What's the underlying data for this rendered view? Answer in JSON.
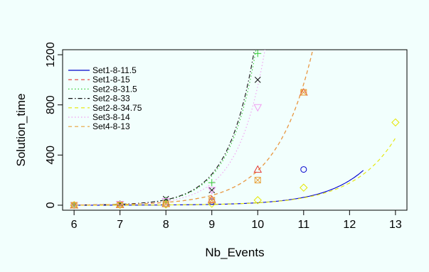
{
  "chart_data": {
    "type": "scatter",
    "title": "",
    "xlabel": "Nb_Events",
    "ylabel": "Solution_time",
    "xlim": [
      5.75,
      13.25
    ],
    "ylim": [
      -40,
      1240
    ],
    "x_ticks": [
      6,
      7,
      8,
      9,
      10,
      11,
      12,
      13
    ],
    "y_ticks": [
      0,
      400,
      800,
      1200
    ],
    "x_tick_labels": [
      "6",
      "7",
      "8",
      "9",
      "10",
      "11",
      "12",
      "13"
    ],
    "y_tick_labels": [
      "0",
      "400",
      "800",
      "1200"
    ],
    "grid": false,
    "legend_position": "top-left",
    "series": [
      {
        "name": "Set1-8-11.5",
        "color": "#0000CC",
        "marker": "circle",
        "dash": "solid",
        "points": [
          {
            "x": 6,
            "y": 0
          },
          {
            "x": 7,
            "y": 3
          },
          {
            "x": 8,
            "y": 8
          },
          {
            "x": 9,
            "y": 28
          },
          {
            "x": 11,
            "y": 285
          }
        ],
        "fit": {
          "a": 0.0002,
          "b": 1.1499,
          "x0": 6,
          "x1": 12.3
        }
      },
      {
        "name": "Set1-8-15",
        "color": "#E53935",
        "marker": "triangle",
        "dash": "dashed",
        "points": [
          {
            "x": 6,
            "y": 0
          },
          {
            "x": 7,
            "y": 4
          },
          {
            "x": 8,
            "y": 12
          },
          {
            "x": 9,
            "y": 45
          },
          {
            "x": 10,
            "y": 285
          },
          {
            "x": 11,
            "y": 900
          }
        ],
        "fit": {
          "a": 0.001,
          "b": 1.2528,
          "x0": 6,
          "x1": 11.25
        }
      },
      {
        "name": "Set2-8-31.5",
        "color": "#33CC33",
        "marker": "plus",
        "dash": "dotted",
        "points": [
          {
            "x": 6,
            "y": 0
          },
          {
            "x": 7,
            "y": 10
          },
          {
            "x": 8,
            "y": 40
          },
          {
            "x": 9,
            "y": 180
          },
          {
            "x": 10,
            "y": 1210
          }
        ],
        "fit": {
          "a": 4e-05,
          "b": 1.7316,
          "x0": 6,
          "x1": 10.25
        }
      },
      {
        "name": "Set2-8-33",
        "color": "#111111",
        "marker": "cross",
        "dash": "dashdot",
        "points": [
          {
            "x": 6,
            "y": 0
          },
          {
            "x": 7,
            "y": 10
          },
          {
            "x": 8,
            "y": 50
          },
          {
            "x": 9,
            "y": 120
          },
          {
            "x": 10,
            "y": 1000
          }
        ],
        "fit": {
          "a": 4e-05,
          "b": 1.7376,
          "x0": 6,
          "x1": 10.15
        }
      },
      {
        "name": "Set2-8-34.75",
        "color": "#E6E600",
        "marker": "diamond",
        "dash": "dashed",
        "points": [
          {
            "x": 6,
            "y": 0
          },
          {
            "x": 7,
            "y": 2
          },
          {
            "x": 8,
            "y": 5
          },
          {
            "x": 9,
            "y": 12
          },
          {
            "x": 10,
            "y": 40
          },
          {
            "x": 11,
            "y": 140
          },
          {
            "x": 13,
            "y": 660
          }
        ],
        "fit": {
          "a": 0.0003,
          "b": 1.1074,
          "x0": 6,
          "x1": 13
        }
      },
      {
        "name": "Set3-8-14",
        "color": "#F09CF0",
        "marker": "inverted-triangle",
        "dash": "dotted",
        "points": [
          {
            "x": 6,
            "y": 0
          },
          {
            "x": 7,
            "y": 8
          },
          {
            "x": 8,
            "y": 30
          },
          {
            "x": 9,
            "y": 120
          },
          {
            "x": 10,
            "y": 780
          }
        ],
        "fit": {
          "a": 4e-05,
          "b": 1.6982,
          "x0": 6,
          "x1": 10.3
        }
      },
      {
        "name": "Set4-8-13",
        "color": "#E8A23C",
        "marker": "square-x",
        "dash": "dashed",
        "points": [
          {
            "x": 6,
            "y": 0
          },
          {
            "x": 7,
            "y": 3
          },
          {
            "x": 8,
            "y": 10
          },
          {
            "x": 9,
            "y": 40
          },
          {
            "x": 10,
            "y": 200
          },
          {
            "x": 11,
            "y": 900
          }
        ],
        "fit": {
          "a": 0.001,
          "b": 1.2528,
          "x0": 6,
          "x1": 11.25
        }
      }
    ]
  }
}
